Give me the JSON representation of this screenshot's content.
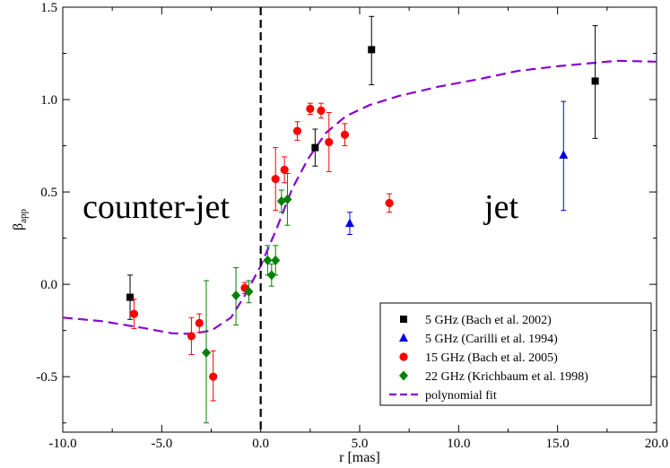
{
  "chart_data": {
    "type": "scatter",
    "title": "",
    "xlabel": "r [mas]",
    "ylabel": "β",
    "ylabel_sub": "app",
    "xlim": [
      -10,
      20
    ],
    "ylim": [
      -0.8,
      1.5
    ],
    "xticks": [
      -10,
      -5,
      0,
      5,
      10,
      15,
      20
    ],
    "xtick_labels": [
      "-10.0",
      "-5.0",
      "0.0",
      "5.0",
      "10.0",
      "15.0",
      "20.0"
    ],
    "yticks": [
      -0.5,
      0,
      0.5,
      1,
      1.5
    ],
    "ytick_labels": [
      "-0.5",
      "0.0",
      "0.5",
      "1.0",
      "1.5"
    ],
    "grid": false,
    "vline": {
      "x": 0,
      "style": "dashed",
      "color": "#000000"
    },
    "annotations": [
      {
        "text": "counter-jet",
        "x": -9.0,
        "y": 0.36
      },
      {
        "text": "jet",
        "x": 11.3,
        "y": 0.36
      }
    ],
    "legend_position": "bottom-right",
    "series": [
      {
        "name": "5 GHz (Bach et al. 2002)",
        "marker": "square",
        "color": "#000000",
        "points": [
          {
            "x": -6.6,
            "y": -0.07,
            "lo": -0.19,
            "hi": 0.05
          },
          {
            "x": 2.75,
            "y": 0.74,
            "lo": 0.64,
            "hi": 0.84
          },
          {
            "x": 5.6,
            "y": 1.27,
            "lo": 1.08,
            "hi": 1.45
          },
          {
            "x": 16.9,
            "y": 1.1,
            "lo": 0.79,
            "hi": 1.4
          }
        ]
      },
      {
        "name": "5 GHz (Carilli et al. 1994)",
        "marker": "triangle",
        "color": "#0000e0",
        "points": [
          {
            "x": 4.5,
            "y": 0.33,
            "lo": 0.27,
            "hi": 0.39
          },
          {
            "x": 15.3,
            "y": 0.7,
            "lo": 0.4,
            "hi": 0.99
          }
        ]
      },
      {
        "name": "15 GHz (Bach et al. 2005)",
        "marker": "circle",
        "color": "#ff0000",
        "points": [
          {
            "x": -6.4,
            "y": -0.16,
            "lo": -0.24,
            "hi": -0.08
          },
          {
            "x": -3.5,
            "y": -0.28,
            "lo": -0.38,
            "hi": -0.18
          },
          {
            "x": -3.1,
            "y": -0.21,
            "lo": -0.26,
            "hi": -0.16
          },
          {
            "x": -2.4,
            "y": -0.5,
            "lo": -0.63,
            "hi": -0.36
          },
          {
            "x": -0.8,
            "y": -0.02,
            "lo": -0.05,
            "hi": 0.01
          },
          {
            "x": 0.75,
            "y": 0.57,
            "lo": 0.4,
            "hi": 0.74
          },
          {
            "x": 1.2,
            "y": 0.62,
            "lo": 0.55,
            "hi": 0.69
          },
          {
            "x": 1.85,
            "y": 0.83,
            "lo": 0.78,
            "hi": 0.88
          },
          {
            "x": 2.5,
            "y": 0.95,
            "lo": 0.92,
            "hi": 0.98
          },
          {
            "x": 3.05,
            "y": 0.94,
            "lo": 0.9,
            "hi": 0.98
          },
          {
            "x": 3.45,
            "y": 0.77,
            "lo": 0.61,
            "hi": 0.93
          },
          {
            "x": 4.25,
            "y": 0.81,
            "lo": 0.75,
            "hi": 0.87
          },
          {
            "x": 6.5,
            "y": 0.44,
            "lo": 0.39,
            "hi": 0.49
          }
        ]
      },
      {
        "name": "22 GHz (Krichbaum et al. 1998)",
        "marker": "diamond",
        "color": "#008000",
        "points": [
          {
            "x": -2.75,
            "y": -0.37,
            "lo": -0.75,
            "hi": 0.02
          },
          {
            "x": -1.25,
            "y": -0.06,
            "lo": -0.22,
            "hi": 0.09
          },
          {
            "x": -0.6,
            "y": -0.04,
            "lo": -0.1,
            "hi": 0.02
          },
          {
            "x": 0.35,
            "y": 0.13,
            "lo": 0.05,
            "hi": 0.21
          },
          {
            "x": 0.55,
            "y": 0.05,
            "lo": -0.01,
            "hi": 0.11
          },
          {
            "x": 0.75,
            "y": 0.13,
            "lo": 0.05,
            "hi": 0.21
          },
          {
            "x": 1.05,
            "y": 0.45,
            "lo": 0.39,
            "hi": 0.51
          },
          {
            "x": 1.35,
            "y": 0.46,
            "lo": 0.32,
            "hi": 0.6
          }
        ]
      }
    ],
    "fit": {
      "name": "polynomial fit",
      "style": "dashed",
      "color": "#8a00d4",
      "points": [
        [
          -10,
          -0.18
        ],
        [
          -8,
          -0.2
        ],
        [
          -6,
          -0.235
        ],
        [
          -4.5,
          -0.265
        ],
        [
          -3.5,
          -0.268
        ],
        [
          -2.5,
          -0.25
        ],
        [
          -1.5,
          -0.18
        ],
        [
          -0.8,
          -0.06
        ],
        [
          0,
          0.1
        ],
        [
          0.8,
          0.3
        ],
        [
          1.6,
          0.52
        ],
        [
          2.4,
          0.68
        ],
        [
          3.3,
          0.82
        ],
        [
          4.3,
          0.91
        ],
        [
          5.5,
          0.97
        ],
        [
          7,
          1.02
        ],
        [
          9,
          1.07
        ],
        [
          11,
          1.11
        ],
        [
          13,
          1.155
        ],
        [
          15,
          1.18
        ],
        [
          17,
          1.2
        ],
        [
          18,
          1.21
        ],
        [
          20,
          1.205
        ]
      ]
    }
  }
}
